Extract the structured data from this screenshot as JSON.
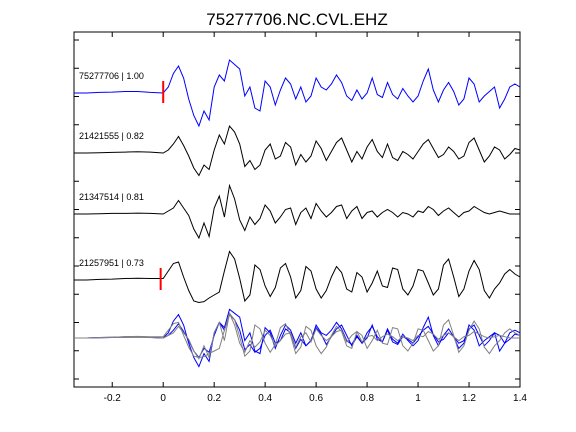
{
  "chart_data": {
    "type": "line",
    "title": "75277706.NC.CVL.EHZ",
    "xlabel": "",
    "ylabel": "",
    "xlim": [
      -0.35,
      1.4
    ],
    "xticks": [
      -0.2,
      0,
      0.2,
      0.4,
      0.6,
      0.8,
      1,
      1.2,
      1.4
    ],
    "xtick_labels": [
      "-0.2",
      "0",
      "0.2",
      "0.4",
      "0.6",
      "0.8",
      "1",
      "1.2",
      "1.4"
    ],
    "grid": false,
    "legend": "none",
    "colors": {
      "master": "#0000ff",
      "other": "#000000",
      "stack_other": "#808080",
      "pick": "#ff0000",
      "frame": "#000000"
    },
    "traces": [
      {
        "event_id": "75277706",
        "correlation": "1.00",
        "label": "75277706 | 1.00",
        "color": "#0000ff",
        "pick_marker_at": 0,
        "x": [
          -0.35,
          -0.3,
          -0.25,
          -0.2,
          -0.15,
          -0.1,
          -0.05,
          0,
          0.02,
          0.04,
          0.06,
          0.08,
          0.1,
          0.12,
          0.14,
          0.16,
          0.18,
          0.2,
          0.22,
          0.24,
          0.26,
          0.28,
          0.3,
          0.32,
          0.34,
          0.36,
          0.38,
          0.4,
          0.42,
          0.44,
          0.46,
          0.48,
          0.5,
          0.52,
          0.54,
          0.56,
          0.58,
          0.6,
          0.62,
          0.64,
          0.66,
          0.68,
          0.7,
          0.72,
          0.74,
          0.76,
          0.78,
          0.8,
          0.82,
          0.84,
          0.86,
          0.88,
          0.9,
          0.92,
          0.94,
          0.96,
          0.98,
          1,
          1.02,
          1.04,
          1.06,
          1.08,
          1.1,
          1.12,
          1.14,
          1.16,
          1.18,
          1.2,
          1.22,
          1.24,
          1.26,
          1.28,
          1.3,
          1.32,
          1.34,
          1.36,
          1.38,
          1.4
        ],
        "y": [
          0,
          0,
          0.02,
          0.03,
          0.05,
          0.05,
          0.02,
          0,
          0.2,
          0.65,
          0.9,
          0.5,
          -0.2,
          -0.75,
          -1.1,
          -0.6,
          -0.9,
          0.2,
          0.6,
          0.4,
          1.1,
          0.95,
          0.8,
          -0.1,
          0.2,
          -0.5,
          -0.6,
          0.4,
          0.2,
          -0.4,
          0.1,
          0.5,
          0.3,
          -0.2,
          0.2,
          -0.3,
          -0.1,
          0.5,
          0.2,
          0.1,
          0.3,
          0.6,
          0.35,
          -0.1,
          -0.25,
          0.1,
          -0.2,
          0,
          0.5,
          -0.05,
          -0.15,
          0.35,
          -0.05,
          -0.2,
          0.15,
          -0.1,
          -0.3,
          -0.1,
          0.4,
          0.8,
          0.1,
          -0.3,
          0.1,
          0.35,
          0.05,
          -0.4,
          -0.2,
          0.5,
          0.3,
          -0.3,
          -0.1,
          0.05,
          0.2,
          -0.5,
          -0.2,
          0.2,
          0.3,
          0.2
        ]
      },
      {
        "event_id": "21421555",
        "correlation": "0.82",
        "label": "21421555 | 0.82",
        "color": "#000000",
        "x": [
          -0.35,
          -0.3,
          -0.25,
          -0.2,
          -0.15,
          -0.1,
          -0.05,
          0,
          0.02,
          0.04,
          0.06,
          0.08,
          0.1,
          0.12,
          0.14,
          0.16,
          0.18,
          0.2,
          0.22,
          0.24,
          0.26,
          0.28,
          0.3,
          0.32,
          0.34,
          0.36,
          0.38,
          0.4,
          0.42,
          0.44,
          0.46,
          0.48,
          0.5,
          0.52,
          0.54,
          0.56,
          0.58,
          0.6,
          0.62,
          0.64,
          0.66,
          0.68,
          0.7,
          0.72,
          0.74,
          0.76,
          0.78,
          0.8,
          0.82,
          0.84,
          0.86,
          0.88,
          0.9,
          0.92,
          0.94,
          0.96,
          0.98,
          1,
          1.02,
          1.04,
          1.06,
          1.08,
          1.1,
          1.12,
          1.14,
          1.16,
          1.18,
          1.2,
          1.22,
          1.24,
          1.26,
          1.28,
          1.3,
          1.32,
          1.34,
          1.36,
          1.38,
          1.4
        ],
        "y": [
          0,
          0,
          0.01,
          0.02,
          0.03,
          0.04,
          0.03,
          0,
          0.1,
          0.3,
          0.55,
          0.25,
          -0.1,
          -0.5,
          -0.75,
          -0.4,
          -0.55,
          0.1,
          0.6,
          0.3,
          0.9,
          0.7,
          0.3,
          -0.45,
          -0.25,
          -0.55,
          -0.4,
          0.1,
          0.3,
          -0.2,
          -0.1,
          0.35,
          0.2,
          -0.4,
          -0.05,
          -0.3,
          -0.1,
          0.4,
          0.15,
          -0.25,
          0.05,
          0.35,
          0.5,
          0.1,
          -0.3,
          0.05,
          -0.2,
          0.2,
          0.45,
          0.05,
          -0.15,
          0.3,
          -0.15,
          -0.25,
          0.05,
          -0.05,
          -0.2,
          0.05,
          0.3,
          0.45,
          0.15,
          -0.15,
          -0.05,
          0.2,
          0.05,
          -0.2,
          -0.1,
          0.35,
          0.5,
          0.1,
          -0.3,
          -0.1,
          0.2,
          0.1,
          -0.2,
          -0.05,
          0.15,
          0.1
        ]
      },
      {
        "event_id": "21347514",
        "correlation": "0.81",
        "label": "21347514 | 0.81",
        "color": "#000000",
        "x": [
          -0.35,
          -0.3,
          -0.25,
          -0.2,
          -0.15,
          -0.1,
          -0.05,
          0,
          0.02,
          0.04,
          0.06,
          0.08,
          0.1,
          0.12,
          0.14,
          0.16,
          0.18,
          0.2,
          0.22,
          0.24,
          0.26,
          0.28,
          0.3,
          0.32,
          0.34,
          0.36,
          0.38,
          0.4,
          0.42,
          0.44,
          0.46,
          0.48,
          0.5,
          0.52,
          0.54,
          0.56,
          0.58,
          0.6,
          0.62,
          0.64,
          0.66,
          0.68,
          0.7,
          0.72,
          0.74,
          0.76,
          0.78,
          0.8,
          0.82,
          0.84,
          0.86,
          0.88,
          0.9,
          0.92,
          0.94,
          0.96,
          0.98,
          1,
          1.02,
          1.04,
          1.06,
          1.08,
          1.1,
          1.12,
          1.14,
          1.16,
          1.18,
          1.2,
          1.22,
          1.24,
          1.26,
          1.28,
          1.3,
          1.32,
          1.34,
          1.36,
          1.38,
          1.4
        ],
        "y": [
          0,
          0,
          0.01,
          0.02,
          0.02,
          0.03,
          0.02,
          0,
          0.1,
          0.2,
          0.45,
          0.2,
          -0.05,
          -0.5,
          -0.8,
          -0.3,
          -0.75,
          0.2,
          0.6,
          -0.1,
          0.95,
          0.5,
          -0.2,
          -0.55,
          -0.1,
          -0.35,
          -0.15,
          0.3,
          0.1,
          -0.3,
          -0.1,
          0.15,
          0.2,
          -0.35,
          0.05,
          0.2,
          -0.15,
          0.35,
          0.1,
          -0.1,
          0.05,
          0.25,
          0.3,
          -0.15,
          0.1,
          0.25,
          -0.15,
          0.05,
          0.1,
          -0.1,
          0.05,
          0.15,
          0.05,
          -0.1,
          0.05,
          0,
          -0.1,
          0.1,
          0.05,
          0.25,
          0.15,
          -0.05,
          0.1,
          0.2,
          0.05,
          -0.1,
          0.05,
          0.1,
          0.25,
          0.15,
          0.05,
          0,
          0.05,
          0.1,
          0.05,
          0,
          0,
          0
        ]
      },
      {
        "event_id": "21257951",
        "correlation": "0.73",
        "label": "21257951 | 0.73",
        "color": "#000000",
        "pick_marker_at": -0.01,
        "x": [
          -0.35,
          -0.3,
          -0.25,
          -0.2,
          -0.15,
          -0.1,
          -0.05,
          0,
          0.02,
          0.04,
          0.06,
          0.08,
          0.1,
          0.12,
          0.14,
          0.16,
          0.18,
          0.2,
          0.22,
          0.24,
          0.26,
          0.28,
          0.3,
          0.32,
          0.34,
          0.36,
          0.38,
          0.4,
          0.42,
          0.44,
          0.46,
          0.48,
          0.5,
          0.52,
          0.54,
          0.56,
          0.58,
          0.6,
          0.62,
          0.64,
          0.66,
          0.68,
          0.7,
          0.72,
          0.74,
          0.76,
          0.78,
          0.8,
          0.82,
          0.84,
          0.86,
          0.88,
          0.9,
          0.92,
          0.94,
          0.96,
          0.98,
          1,
          1.02,
          1.04,
          1.06,
          1.08,
          1.1,
          1.12,
          1.14,
          1.16,
          1.18,
          1.2,
          1.22,
          1.24,
          1.26,
          1.28,
          1.3,
          1.32,
          1.34,
          1.36,
          1.38,
          1.4
        ],
        "y": [
          0,
          0,
          0.02,
          0.03,
          0.05,
          0.06,
          0.05,
          0.05,
          0.3,
          0.55,
          0.6,
          0.1,
          -0.35,
          -0.7,
          -0.75,
          -0.72,
          -0.6,
          -0.5,
          -0.4,
          0.3,
          0.95,
          0.7,
          0.05,
          -0.7,
          -0.5,
          0.5,
          0.35,
          -0.2,
          -0.55,
          -0.25,
          0.4,
          0.55,
          0.1,
          -0.6,
          -0.35,
          0.45,
          0.3,
          -0.3,
          -0.6,
          -0.35,
          0.1,
          0.45,
          0.25,
          -0.3,
          -0.4,
          0.25,
          0.1,
          -0.4,
          -0.1,
          0.3,
          -0.2,
          -0.25,
          0.4,
          0.35,
          -0.3,
          -0.5,
          -0.2,
          0.35,
          0.3,
          -0.1,
          -0.5,
          -0.3,
          0.5,
          0.7,
          0.1,
          -0.55,
          -0.3,
          0.3,
          0.65,
          0.35,
          -0.35,
          -0.6,
          -0.3,
          -0.1,
          0.2,
          0.35,
          0.2,
          0.1
        ]
      }
    ],
    "stack": {
      "description_note": "",
      "series": [
        {
          "color": "#0000ff",
          "source": "75277706"
        },
        {
          "color": "#0000ff",
          "source": "21421555"
        },
        {
          "color": "#808080",
          "source": "21347514"
        },
        {
          "color": "#808080",
          "source": "21257951"
        }
      ]
    }
  }
}
